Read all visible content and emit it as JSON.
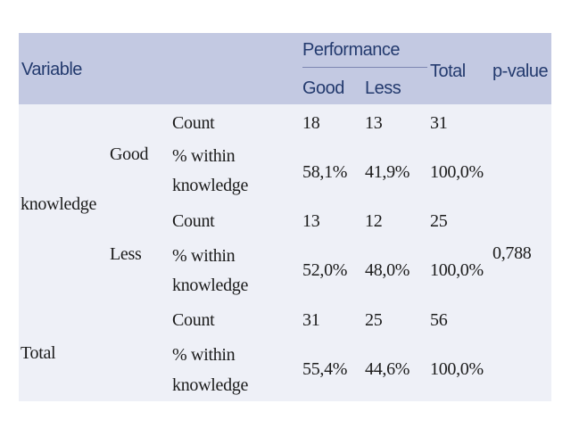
{
  "header": {
    "variable": "Variable",
    "performance": "Performance",
    "good": "Good",
    "less": "Less",
    "total": "Total",
    "pvalue": "p-value"
  },
  "row_labels": {
    "knowledge": "knowledge",
    "good": "Good",
    "less": "Less",
    "total": "Total",
    "count": "Count",
    "pct_line1": "% within",
    "pct_line2": "knowledge"
  },
  "rows": {
    "good_count": [
      "18",
      "13",
      "31"
    ],
    "good_pct": [
      "58,1%",
      "41,9%",
      "100,0%"
    ],
    "less_count": [
      "13",
      "12",
      "25"
    ],
    "less_pct": [
      "52,0%",
      "48,0%",
      "100,0%"
    ],
    "total_count": [
      "31",
      "25",
      "56"
    ],
    "total_pct": [
      "55,4%",
      "44,6%",
      "100,0%"
    ]
  },
  "pvalue": "0,788"
}
